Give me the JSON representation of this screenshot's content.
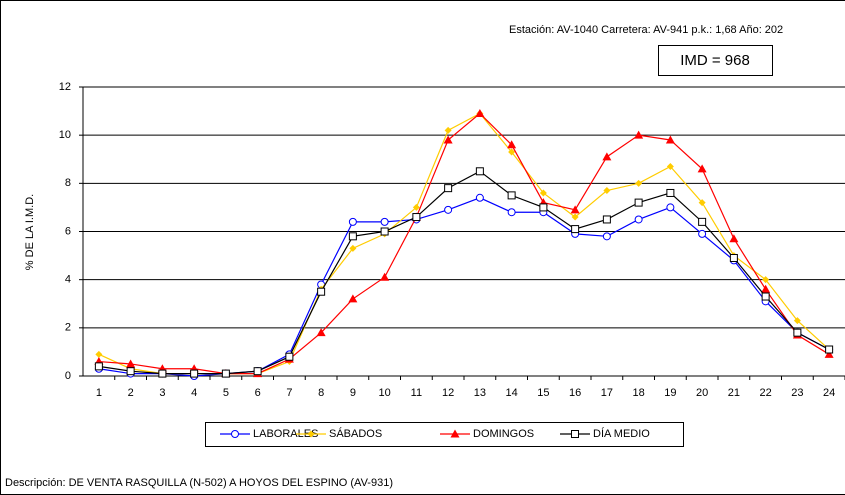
{
  "chart_data": {
    "type": "line",
    "header": "Estación: AV-1040   Carretera: AV-941   p.k.: 1,68   Año: 202",
    "annotation": "IMD = 968",
    "y_label": "% DE LA I.M.D.",
    "description": "Descripción: DE VENTA RASQUILLA (N-502) A HOYOS DEL ESPINO (AV-931)",
    "categories": [
      1,
      2,
      3,
      4,
      5,
      6,
      7,
      8,
      9,
      10,
      11,
      12,
      13,
      14,
      15,
      16,
      17,
      18,
      19,
      20,
      21,
      22,
      23,
      24
    ],
    "ylim": [
      0,
      12
    ],
    "yticks": [
      0,
      2,
      4,
      6,
      8,
      10,
      12
    ],
    "grid": true,
    "series": [
      {
        "name": "LABORALES",
        "color": "#0000ff",
        "marker": "circle",
        "values": [
          0.3,
          0.1,
          0.1,
          0.0,
          0.1,
          0.2,
          0.9,
          3.8,
          6.4,
          6.4,
          6.5,
          6.9,
          7.4,
          6.8,
          6.8,
          5.9,
          5.8,
          6.5,
          7.0,
          5.9,
          4.8,
          3.1,
          1.8,
          1.1
        ]
      },
      {
        "name": "SÁBADOS",
        "color": "#ffcc00",
        "marker": "diamond",
        "values": [
          0.9,
          0.3,
          0.1,
          0.1,
          0.1,
          0.1,
          0.6,
          3.6,
          5.3,
          5.9,
          7.0,
          10.2,
          10.9,
          9.3,
          7.6,
          6.6,
          7.7,
          8.0,
          8.7,
          7.2,
          5.0,
          4.0,
          2.3,
          1.1
        ]
      },
      {
        "name": "DOMINGOS",
        "color": "#ff0000",
        "marker": "triangle",
        "values": [
          0.6,
          0.5,
          0.3,
          0.3,
          0.1,
          0.1,
          0.7,
          1.8,
          3.2,
          4.1,
          6.6,
          9.8,
          10.9,
          9.6,
          7.2,
          6.9,
          9.1,
          10.0,
          9.8,
          8.6,
          5.7,
          3.6,
          1.7,
          0.9
        ]
      },
      {
        "name": "DÍA MEDIO",
        "color": "#000000",
        "marker": "square",
        "values": [
          0.4,
          0.2,
          0.1,
          0.1,
          0.1,
          0.2,
          0.8,
          3.5,
          5.8,
          6.0,
          6.6,
          7.8,
          8.5,
          7.5,
          7.0,
          6.1,
          6.5,
          7.2,
          7.6,
          6.4,
          4.9,
          3.3,
          1.8,
          1.1
        ]
      }
    ]
  }
}
